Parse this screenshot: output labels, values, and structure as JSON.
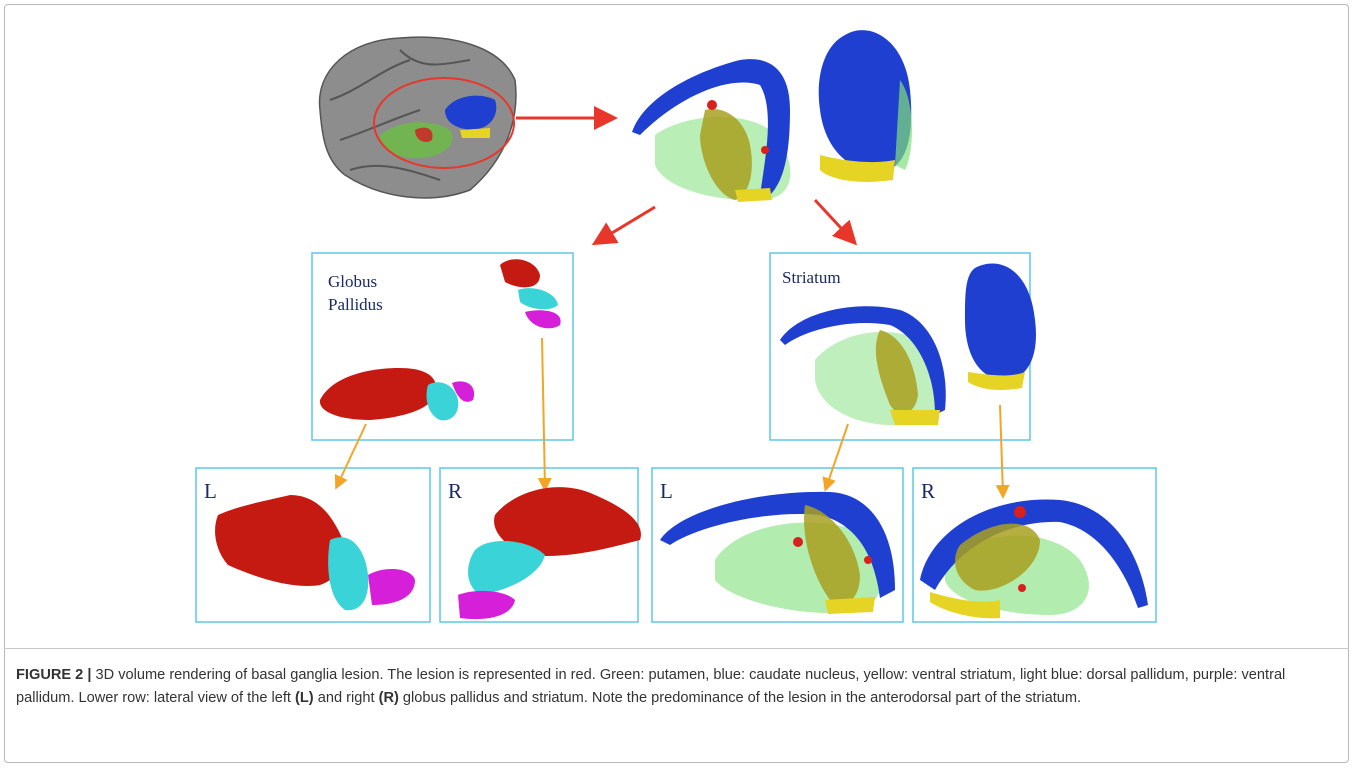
{
  "figure": {
    "panels": {
      "globus_pallidus": {
        "label_lines": [
          "Globus",
          "Pallidus"
        ]
      },
      "striatum": {
        "label": "Striatum"
      },
      "views": [
        {
          "label": "L"
        },
        {
          "label": "R"
        },
        {
          "label": "L"
        },
        {
          "label": "R"
        }
      ]
    },
    "caption": {
      "label": "FIGURE 2 |",
      "parts": [
        {
          "text": " 3D volume rendering of basal ganglia lesion. The lesion is represented in red. Green: putamen, blue: caudate nucleus, yellow: ventral striatum, light blue: dorsal pallidum, purple: ventral pallidum. Lower row: lateral view of the left ",
          "bold": false
        },
        {
          "text": "(L)",
          "bold": true
        },
        {
          "text": " and right ",
          "bold": false
        },
        {
          "text": "(R)",
          "bold": true
        },
        {
          "text": " globus pallidus and striatum. Note the predominance of the lesion in the anterodorsal part of the striatum.",
          "bold": false
        }
      ]
    }
  }
}
